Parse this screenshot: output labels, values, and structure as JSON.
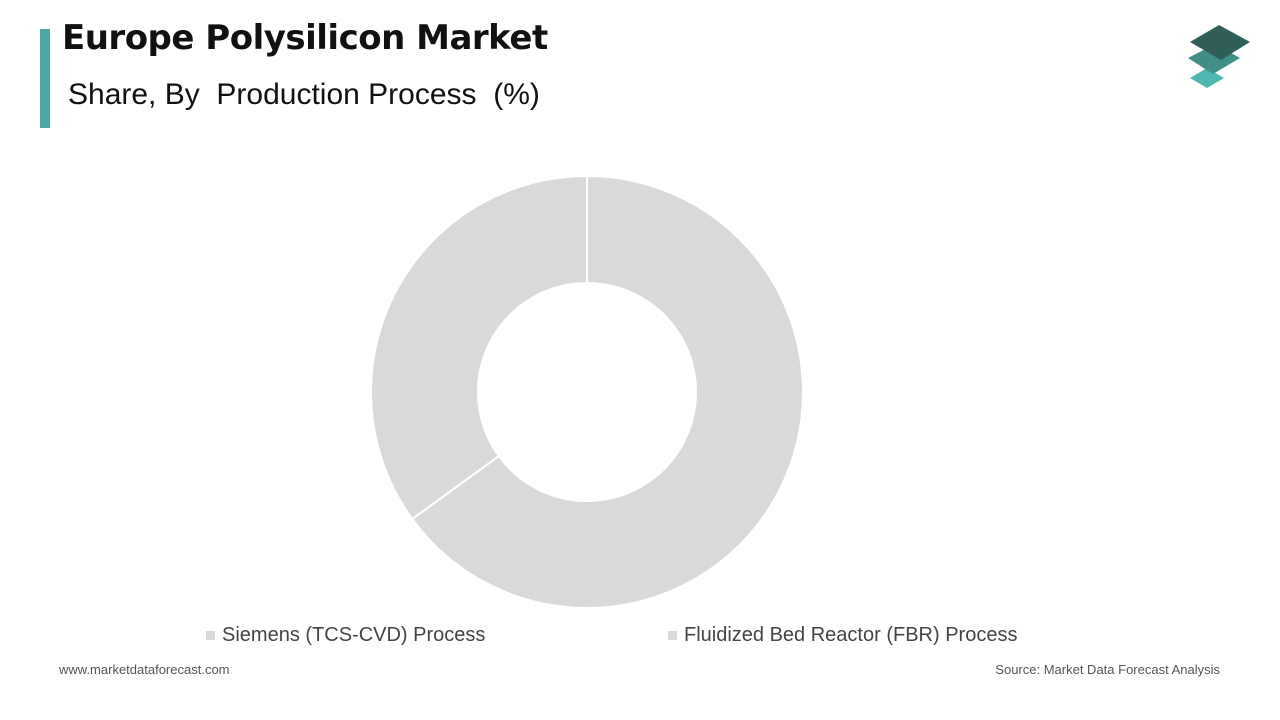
{
  "header": {
    "title": "Europe Polysilicon Market",
    "subtitle": "Share, By  Production Process  (%)"
  },
  "footer": {
    "website": "www.marketdataforecast.com",
    "source": "Source: Market Data Forecast Analysis"
  },
  "colors": {
    "accent": "#4aa8a4",
    "slice": "#d9d9d9",
    "separator": "#ffffff",
    "logo_top": "#2f5f58",
    "logo_mid": "#3f8f86",
    "logo_bottom": "#4fb8ae"
  },
  "icons": {
    "logo": "layered-stack-icon"
  },
  "chart_data": {
    "type": "pie",
    "donut": true,
    "categories": [
      "Siemens (TCS-CVD) Process",
      "Fluidized Bed Reactor (FBR) Process"
    ],
    "values": [
      65,
      35
    ],
    "legend_position": "bottom"
  }
}
